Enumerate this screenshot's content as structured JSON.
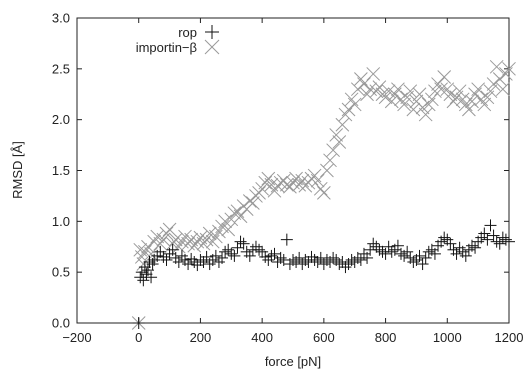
{
  "chart_data": {
    "type": "scatter",
    "title": "",
    "xlabel": "force [pN]",
    "ylabel": "RMSD [Å]",
    "xlim": [
      -200,
      1200
    ],
    "ylim": [
      0.0,
      3.0
    ],
    "xticks": [
      -200,
      0,
      200,
      400,
      600,
      800,
      1000,
      1200
    ],
    "yticks": [
      0.0,
      0.5,
      1.0,
      1.5,
      2.0,
      2.5,
      3.0
    ],
    "xtick_labels": [
      "−200",
      "0",
      "200",
      "400",
      "600",
      "800",
      "1000",
      "1200"
    ],
    "ytick_labels": [
      "0.0",
      "0.5",
      "1.0",
      "1.5",
      "2.0",
      "2.5",
      "3.0"
    ],
    "grid": false,
    "legend_position": "top-left",
    "series": [
      {
        "name": "rop",
        "marker": "plus",
        "color": "#111111",
        "points": [
          [
            0,
            0.0
          ],
          [
            5,
            0.45
          ],
          [
            10,
            0.5
          ],
          [
            15,
            0.42
          ],
          [
            20,
            0.55
          ],
          [
            25,
            0.48
          ],
          [
            30,
            0.52
          ],
          [
            35,
            0.6
          ],
          [
            40,
            0.45
          ],
          [
            45,
            0.58
          ],
          [
            50,
            0.62
          ],
          [
            60,
            0.66
          ],
          [
            70,
            0.7
          ],
          [
            80,
            0.65
          ],
          [
            90,
            0.62
          ],
          [
            100,
            0.68
          ],
          [
            110,
            0.72
          ],
          [
            120,
            0.64
          ],
          [
            130,
            0.6
          ],
          [
            140,
            0.66
          ],
          [
            150,
            0.62
          ],
          [
            160,
            0.58
          ],
          [
            170,
            0.63
          ],
          [
            180,
            0.6
          ],
          [
            190,
            0.57
          ],
          [
            200,
            0.62
          ],
          [
            210,
            0.6
          ],
          [
            220,
            0.65
          ],
          [
            230,
            0.58
          ],
          [
            240,
            0.62
          ],
          [
            250,
            0.66
          ],
          [
            260,
            0.6
          ],
          [
            270,
            0.64
          ],
          [
            280,
            0.7
          ],
          [
            290,
            0.72
          ],
          [
            300,
            0.68
          ],
          [
            310,
            0.66
          ],
          [
            320,
            0.74
          ],
          [
            330,
            0.8
          ],
          [
            340,
            0.78
          ],
          [
            350,
            0.7
          ],
          [
            360,
            0.66
          ],
          [
            370,
            0.72
          ],
          [
            380,
            0.75
          ],
          [
            390,
            0.72
          ],
          [
            400,
            0.7
          ],
          [
            410,
            0.65
          ],
          [
            420,
            0.62
          ],
          [
            430,
            0.66
          ],
          [
            440,
            0.68
          ],
          [
            450,
            0.6
          ],
          [
            460,
            0.64
          ],
          [
            470,
            0.62
          ],
          [
            480,
            0.82
          ],
          [
            490,
            0.58
          ],
          [
            500,
            0.62
          ],
          [
            510,
            0.6
          ],
          [
            520,
            0.64
          ],
          [
            530,
            0.58
          ],
          [
            540,
            0.62
          ],
          [
            550,
            0.6
          ],
          [
            560,
            0.65
          ],
          [
            570,
            0.62
          ],
          [
            580,
            0.6
          ],
          [
            590,
            0.64
          ],
          [
            600,
            0.58
          ],
          [
            610,
            0.62
          ],
          [
            620,
            0.6
          ],
          [
            630,
            0.64
          ],
          [
            640,
            0.62
          ],
          [
            650,
            0.58
          ],
          [
            660,
            0.6
          ],
          [
            670,
            0.55
          ],
          [
            680,
            0.58
          ],
          [
            690,
            0.62
          ],
          [
            700,
            0.6
          ],
          [
            710,
            0.64
          ],
          [
            720,
            0.62
          ],
          [
            730,
            0.68
          ],
          [
            740,
            0.64
          ],
          [
            750,
            0.72
          ],
          [
            760,
            0.78
          ],
          [
            770,
            0.75
          ],
          [
            780,
            0.72
          ],
          [
            790,
            0.7
          ],
          [
            800,
            0.68
          ],
          [
            810,
            0.75
          ],
          [
            820,
            0.7
          ],
          [
            830,
            0.72
          ],
          [
            840,
            0.76
          ],
          [
            850,
            0.68
          ],
          [
            860,
            0.66
          ],
          [
            870,
            0.7
          ],
          [
            880,
            0.64
          ],
          [
            890,
            0.6
          ],
          [
            900,
            0.62
          ],
          [
            910,
            0.66
          ],
          [
            920,
            0.58
          ],
          [
            930,
            0.64
          ],
          [
            940,
            0.7
          ],
          [
            950,
            0.72
          ],
          [
            960,
            0.68
          ],
          [
            970,
            0.76
          ],
          [
            980,
            0.8
          ],
          [
            990,
            0.84
          ],
          [
            1000,
            0.82
          ],
          [
            1010,
            0.78
          ],
          [
            1020,
            0.72
          ],
          [
            1030,
            0.68
          ],
          [
            1040,
            0.74
          ],
          [
            1050,
            0.7
          ],
          [
            1060,
            0.66
          ],
          [
            1070,
            0.72
          ],
          [
            1080,
            0.76
          ],
          [
            1090,
            0.74
          ],
          [
            1100,
            0.8
          ],
          [
            1110,
            0.84
          ],
          [
            1120,
            0.88
          ],
          [
            1130,
            0.82
          ],
          [
            1140,
            0.96
          ],
          [
            1150,
            0.86
          ],
          [
            1160,
            0.8
          ],
          [
            1170,
            0.78
          ],
          [
            1180,
            0.84
          ],
          [
            1190,
            0.82
          ],
          [
            1200,
            0.8
          ]
        ]
      },
      {
        "name": "importin−β",
        "marker": "cross",
        "color": "#999999",
        "points": [
          [
            0,
            0.0
          ],
          [
            5,
            0.72
          ],
          [
            10,
            0.65
          ],
          [
            15,
            0.58
          ],
          [
            20,
            0.7
          ],
          [
            30,
            0.75
          ],
          [
            40,
            0.68
          ],
          [
            50,
            0.8
          ],
          [
            60,
            0.85
          ],
          [
            70,
            0.78
          ],
          [
            80,
            0.82
          ],
          [
            90,
            0.88
          ],
          [
            100,
            0.92
          ],
          [
            110,
            0.78
          ],
          [
            120,
            0.82
          ],
          [
            130,
            0.75
          ],
          [
            140,
            0.8
          ],
          [
            150,
            0.85
          ],
          [
            160,
            0.78
          ],
          [
            170,
            0.82
          ],
          [
            180,
            0.76
          ],
          [
            190,
            0.8
          ],
          [
            200,
            0.84
          ],
          [
            210,
            0.78
          ],
          [
            220,
            0.82
          ],
          [
            230,
            0.88
          ],
          [
            240,
            0.8
          ],
          [
            250,
            0.85
          ],
          [
            260,
            0.9
          ],
          [
            270,
            0.95
          ],
          [
            280,
            1.0
          ],
          [
            290,
            0.92
          ],
          [
            300,
            1.02
          ],
          [
            310,
            1.08
          ],
          [
            320,
            1.1
          ],
          [
            330,
            1.05
          ],
          [
            340,
            1.15
          ],
          [
            350,
            1.12
          ],
          [
            360,
            1.2
          ],
          [
            370,
            1.18
          ],
          [
            380,
            1.25
          ],
          [
            390,
            1.28
          ],
          [
            400,
            1.32
          ],
          [
            410,
            1.38
          ],
          [
            420,
            1.42
          ],
          [
            430,
            1.36
          ],
          [
            440,
            1.3
          ],
          [
            450,
            1.35
          ],
          [
            460,
            1.38
          ],
          [
            470,
            1.4
          ],
          [
            480,
            1.36
          ],
          [
            490,
            1.34
          ],
          [
            500,
            1.38
          ],
          [
            510,
            1.42
          ],
          [
            520,
            1.36
          ],
          [
            530,
            1.4
          ],
          [
            540,
            1.35
          ],
          [
            550,
            1.38
          ],
          [
            560,
            1.42
          ],
          [
            570,
            1.45
          ],
          [
            580,
            1.4
          ],
          [
            590,
            1.32
          ],
          [
            600,
            1.28
          ],
          [
            610,
            1.5
          ],
          [
            620,
            1.6
          ],
          [
            630,
            1.7
          ],
          [
            640,
            1.85
          ],
          [
            650,
            1.78
          ],
          [
            660,
            1.95
          ],
          [
            670,
            2.05
          ],
          [
            680,
            2.1
          ],
          [
            690,
            2.2
          ],
          [
            700,
            2.15
          ],
          [
            710,
            2.3
          ],
          [
            720,
            2.4
          ],
          [
            730,
            2.35
          ],
          [
            740,
            2.25
          ],
          [
            750,
            2.3
          ],
          [
            760,
            2.45
          ],
          [
            770,
            2.28
          ],
          [
            780,
            2.32
          ],
          [
            790,
            2.25
          ],
          [
            800,
            2.22
          ],
          [
            810,
            2.28
          ],
          [
            820,
            2.18
          ],
          [
            830,
            2.25
          ],
          [
            840,
            2.3
          ],
          [
            850,
            2.2
          ],
          [
            860,
            2.15
          ],
          [
            870,
            2.22
          ],
          [
            880,
            2.28
          ],
          [
            890,
            2.1
          ],
          [
            900,
            2.18
          ],
          [
            910,
            2.25
          ],
          [
            920,
            2.12
          ],
          [
            930,
            2.05
          ],
          [
            940,
            2.15
          ],
          [
            950,
            2.2
          ],
          [
            960,
            2.28
          ],
          [
            970,
            2.35
          ],
          [
            980,
            2.3
          ],
          [
            990,
            2.42
          ],
          [
            1000,
            2.3
          ],
          [
            1010,
            2.25
          ],
          [
            1020,
            2.18
          ],
          [
            1030,
            2.22
          ],
          [
            1040,
            2.28
          ],
          [
            1050,
            2.2
          ],
          [
            1060,
            2.15
          ],
          [
            1070,
            2.1
          ],
          [
            1080,
            2.18
          ],
          [
            1090,
            2.25
          ],
          [
            1100,
            2.3
          ],
          [
            1110,
            2.2
          ],
          [
            1120,
            2.15
          ],
          [
            1130,
            2.22
          ],
          [
            1140,
            2.28
          ],
          [
            1150,
            2.35
          ],
          [
            1160,
            2.52
          ],
          [
            1170,
            2.4
          ],
          [
            1180,
            2.3
          ],
          [
            1190,
            2.45
          ],
          [
            1200,
            2.5
          ]
        ]
      }
    ]
  }
}
